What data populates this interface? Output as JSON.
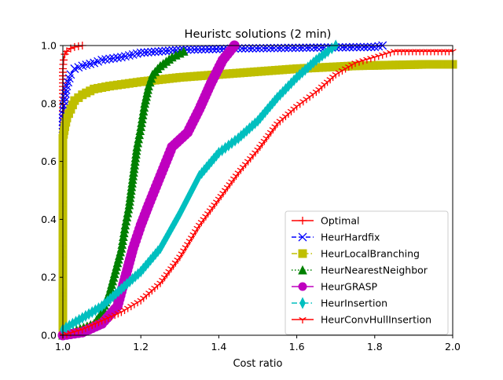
{
  "chart_data": {
    "type": "line",
    "title": "Heuristc solutions (2 min)",
    "xlabel": "Cost ratio",
    "ylabel": "",
    "xlim": [
      1.0,
      2.0
    ],
    "ylim": [
      0.0,
      1.0
    ],
    "xticks": [
      1.0,
      1.2,
      1.4,
      1.6,
      1.8,
      2.0
    ],
    "yticks": [
      0.0,
      0.2,
      0.4,
      0.6,
      0.8,
      1.0
    ],
    "xtick_labels": [
      "1.0",
      "1.2",
      "1.4",
      "1.6",
      "1.8",
      "2.0"
    ],
    "ytick_labels": [
      "0.0",
      "0.2",
      "0.4",
      "0.6",
      "0.8",
      "1.0"
    ],
    "grid": false,
    "legend_position": "lower-right",
    "series": [
      {
        "name": "Optimal",
        "color": "#ff0000",
        "marker": "plus",
        "dash": "solid",
        "points": [
          [
            1.0,
            0.0
          ],
          [
            1.0,
            0.92
          ],
          [
            1.002,
            0.95
          ],
          [
            1.005,
            0.97
          ],
          [
            1.01,
            0.98
          ],
          [
            1.02,
            0.99
          ],
          [
            1.03,
            0.995
          ],
          [
            1.05,
            1.0
          ]
        ]
      },
      {
        "name": "HeurHardfix",
        "color": "#0000ff",
        "marker": "x",
        "dash": "dashed",
        "points": [
          [
            1.0,
            0.0
          ],
          [
            1.0,
            0.75
          ],
          [
            1.005,
            0.82
          ],
          [
            1.01,
            0.86
          ],
          [
            1.02,
            0.9
          ],
          [
            1.03,
            0.92
          ],
          [
            1.05,
            0.93
          ],
          [
            1.08,
            0.94
          ],
          [
            1.1,
            0.95
          ],
          [
            1.15,
            0.96
          ],
          [
            1.2,
            0.975
          ],
          [
            1.3,
            0.985
          ],
          [
            1.45,
            0.99
          ],
          [
            1.8,
            0.995
          ],
          [
            1.82,
            1.0
          ]
        ]
      },
      {
        "name": "HeurLocalBranching",
        "color": "#bfbf00",
        "marker": "square",
        "dash": "dashdot",
        "points": [
          [
            1.0,
            0.0
          ],
          [
            1.0,
            0.68
          ],
          [
            1.005,
            0.72
          ],
          [
            1.01,
            0.75
          ],
          [
            1.02,
            0.78
          ],
          [
            1.03,
            0.81
          ],
          [
            1.05,
            0.83
          ],
          [
            1.08,
            0.85
          ],
          [
            1.12,
            0.86
          ],
          [
            1.2,
            0.875
          ],
          [
            1.3,
            0.89
          ],
          [
            1.4,
            0.9
          ],
          [
            1.5,
            0.91
          ],
          [
            1.6,
            0.92
          ],
          [
            1.75,
            0.93
          ],
          [
            1.93,
            0.935
          ],
          [
            2.0,
            0.935
          ]
        ]
      },
      {
        "name": "HeurNearestNeighbor",
        "color": "#008000",
        "marker": "triangle",
        "dash": "dotted",
        "points": [
          [
            1.0,
            0.0
          ],
          [
            1.08,
            0.04
          ],
          [
            1.1,
            0.08
          ],
          [
            1.12,
            0.15
          ],
          [
            1.14,
            0.25
          ],
          [
            1.15,
            0.3
          ],
          [
            1.16,
            0.38
          ],
          [
            1.17,
            0.45
          ],
          [
            1.18,
            0.55
          ],
          [
            1.19,
            0.65
          ],
          [
            1.2,
            0.72
          ],
          [
            1.21,
            0.8
          ],
          [
            1.22,
            0.86
          ],
          [
            1.23,
            0.9
          ],
          [
            1.25,
            0.93
          ],
          [
            1.28,
            0.96
          ],
          [
            1.31,
            0.98
          ]
        ]
      },
      {
        "name": "HeurGRASP",
        "color": "#bf00bf",
        "marker": "circle",
        "dash": "solid",
        "points": [
          [
            1.0,
            0.0
          ],
          [
            1.05,
            0.01
          ],
          [
            1.1,
            0.04
          ],
          [
            1.14,
            0.1
          ],
          [
            1.16,
            0.2
          ],
          [
            1.18,
            0.3
          ],
          [
            1.2,
            0.38
          ],
          [
            1.22,
            0.45
          ],
          [
            1.25,
            0.55
          ],
          [
            1.28,
            0.65
          ],
          [
            1.32,
            0.7
          ],
          [
            1.35,
            0.78
          ],
          [
            1.38,
            0.87
          ],
          [
            1.41,
            0.95
          ],
          [
            1.44,
            1.0
          ]
        ]
      },
      {
        "name": "HeurInsertion",
        "color": "#00bfbf",
        "marker": "thin_diamond",
        "dash": "dashdot",
        "points": [
          [
            1.0,
            0.02
          ],
          [
            1.05,
            0.06
          ],
          [
            1.1,
            0.1
          ],
          [
            1.15,
            0.16
          ],
          [
            1.2,
            0.22
          ],
          [
            1.25,
            0.3
          ],
          [
            1.3,
            0.42
          ],
          [
            1.35,
            0.55
          ],
          [
            1.4,
            0.63
          ],
          [
            1.45,
            0.68
          ],
          [
            1.5,
            0.74
          ],
          [
            1.55,
            0.82
          ],
          [
            1.6,
            0.89
          ],
          [
            1.65,
            0.95
          ],
          [
            1.68,
            0.98
          ],
          [
            1.7,
            1.0
          ]
        ]
      },
      {
        "name": "HeurConvHullInsertion",
        "color": "#ff0000",
        "marker": "tri_down",
        "dash": "solid",
        "points": [
          [
            1.0,
            0.0
          ],
          [
            1.05,
            0.02
          ],
          [
            1.1,
            0.05
          ],
          [
            1.15,
            0.08
          ],
          [
            1.2,
            0.12
          ],
          [
            1.25,
            0.18
          ],
          [
            1.3,
            0.27
          ],
          [
            1.35,
            0.38
          ],
          [
            1.4,
            0.47
          ],
          [
            1.45,
            0.56
          ],
          [
            1.5,
            0.64
          ],
          [
            1.55,
            0.73
          ],
          [
            1.6,
            0.79
          ],
          [
            1.65,
            0.84
          ],
          [
            1.7,
            0.9
          ],
          [
            1.75,
            0.94
          ],
          [
            1.8,
            0.96
          ],
          [
            1.85,
            0.98
          ],
          [
            2.0,
            0.98
          ]
        ]
      }
    ]
  }
}
